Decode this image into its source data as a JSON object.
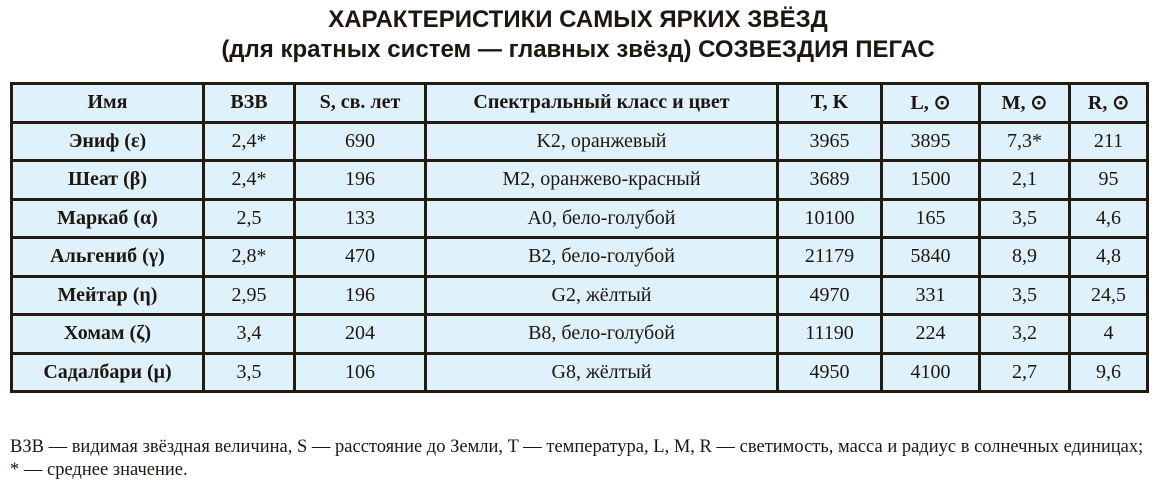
{
  "title": {
    "line1": "ХАРАКТЕРИСТИКИ САМЫХ ЯРКИХ ЗВЁЗД",
    "line2": "(для кратных систем — главных звёзд) СОЗВЕЗДИЯ ПЕГАС"
  },
  "table": {
    "headers": [
      "Имя",
      "ВЗВ",
      "S, св. лет",
      "Спектральный класс и цвет",
      "T, K",
      "L, ⊙",
      "M, ⊙",
      "R, ⊙"
    ],
    "rows": [
      [
        "Эниф (ε)",
        "2,4*",
        "690",
        "K2, оранжевый",
        "3965",
        "3895",
        "7,3*",
        "211"
      ],
      [
        "Шеат (β)",
        "2,4*",
        "196",
        "M2, оранжево-красный",
        "3689",
        "1500",
        "2,1",
        "95"
      ],
      [
        "Маркаб (α)",
        "2,5",
        "133",
        "A0, бело-голубой",
        "10100",
        "165",
        "3,5",
        "4,6"
      ],
      [
        "Альгениб (γ)",
        "2,8*",
        "470",
        "B2, бело-голубой",
        "21179",
        "5840",
        "8,9",
        "4,8"
      ],
      [
        "Мейтар (η)",
        "2,95",
        "196",
        "G2, жёлтый",
        "4970",
        "331",
        "3,5",
        "24,5"
      ],
      [
        "Хомам (ζ)",
        "3,4",
        "204",
        "B8, бело-голубой",
        "11190",
        "224",
        "3,2",
        "4"
      ],
      [
        "Садалбари (μ)",
        "3,5",
        "106",
        "G8, жёлтый",
        "4950",
        "4100",
        "2,7",
        "9,6"
      ]
    ]
  },
  "footnote": "ВЗВ — видимая звёздная величина, S — расстояние до Земли, T — температура, L, M, R — светимость, масса и радиус в солнечных единицах; * — среднее значение.",
  "colors": {
    "table_bg": "#dff2fb",
    "border": "#231a10"
  }
}
